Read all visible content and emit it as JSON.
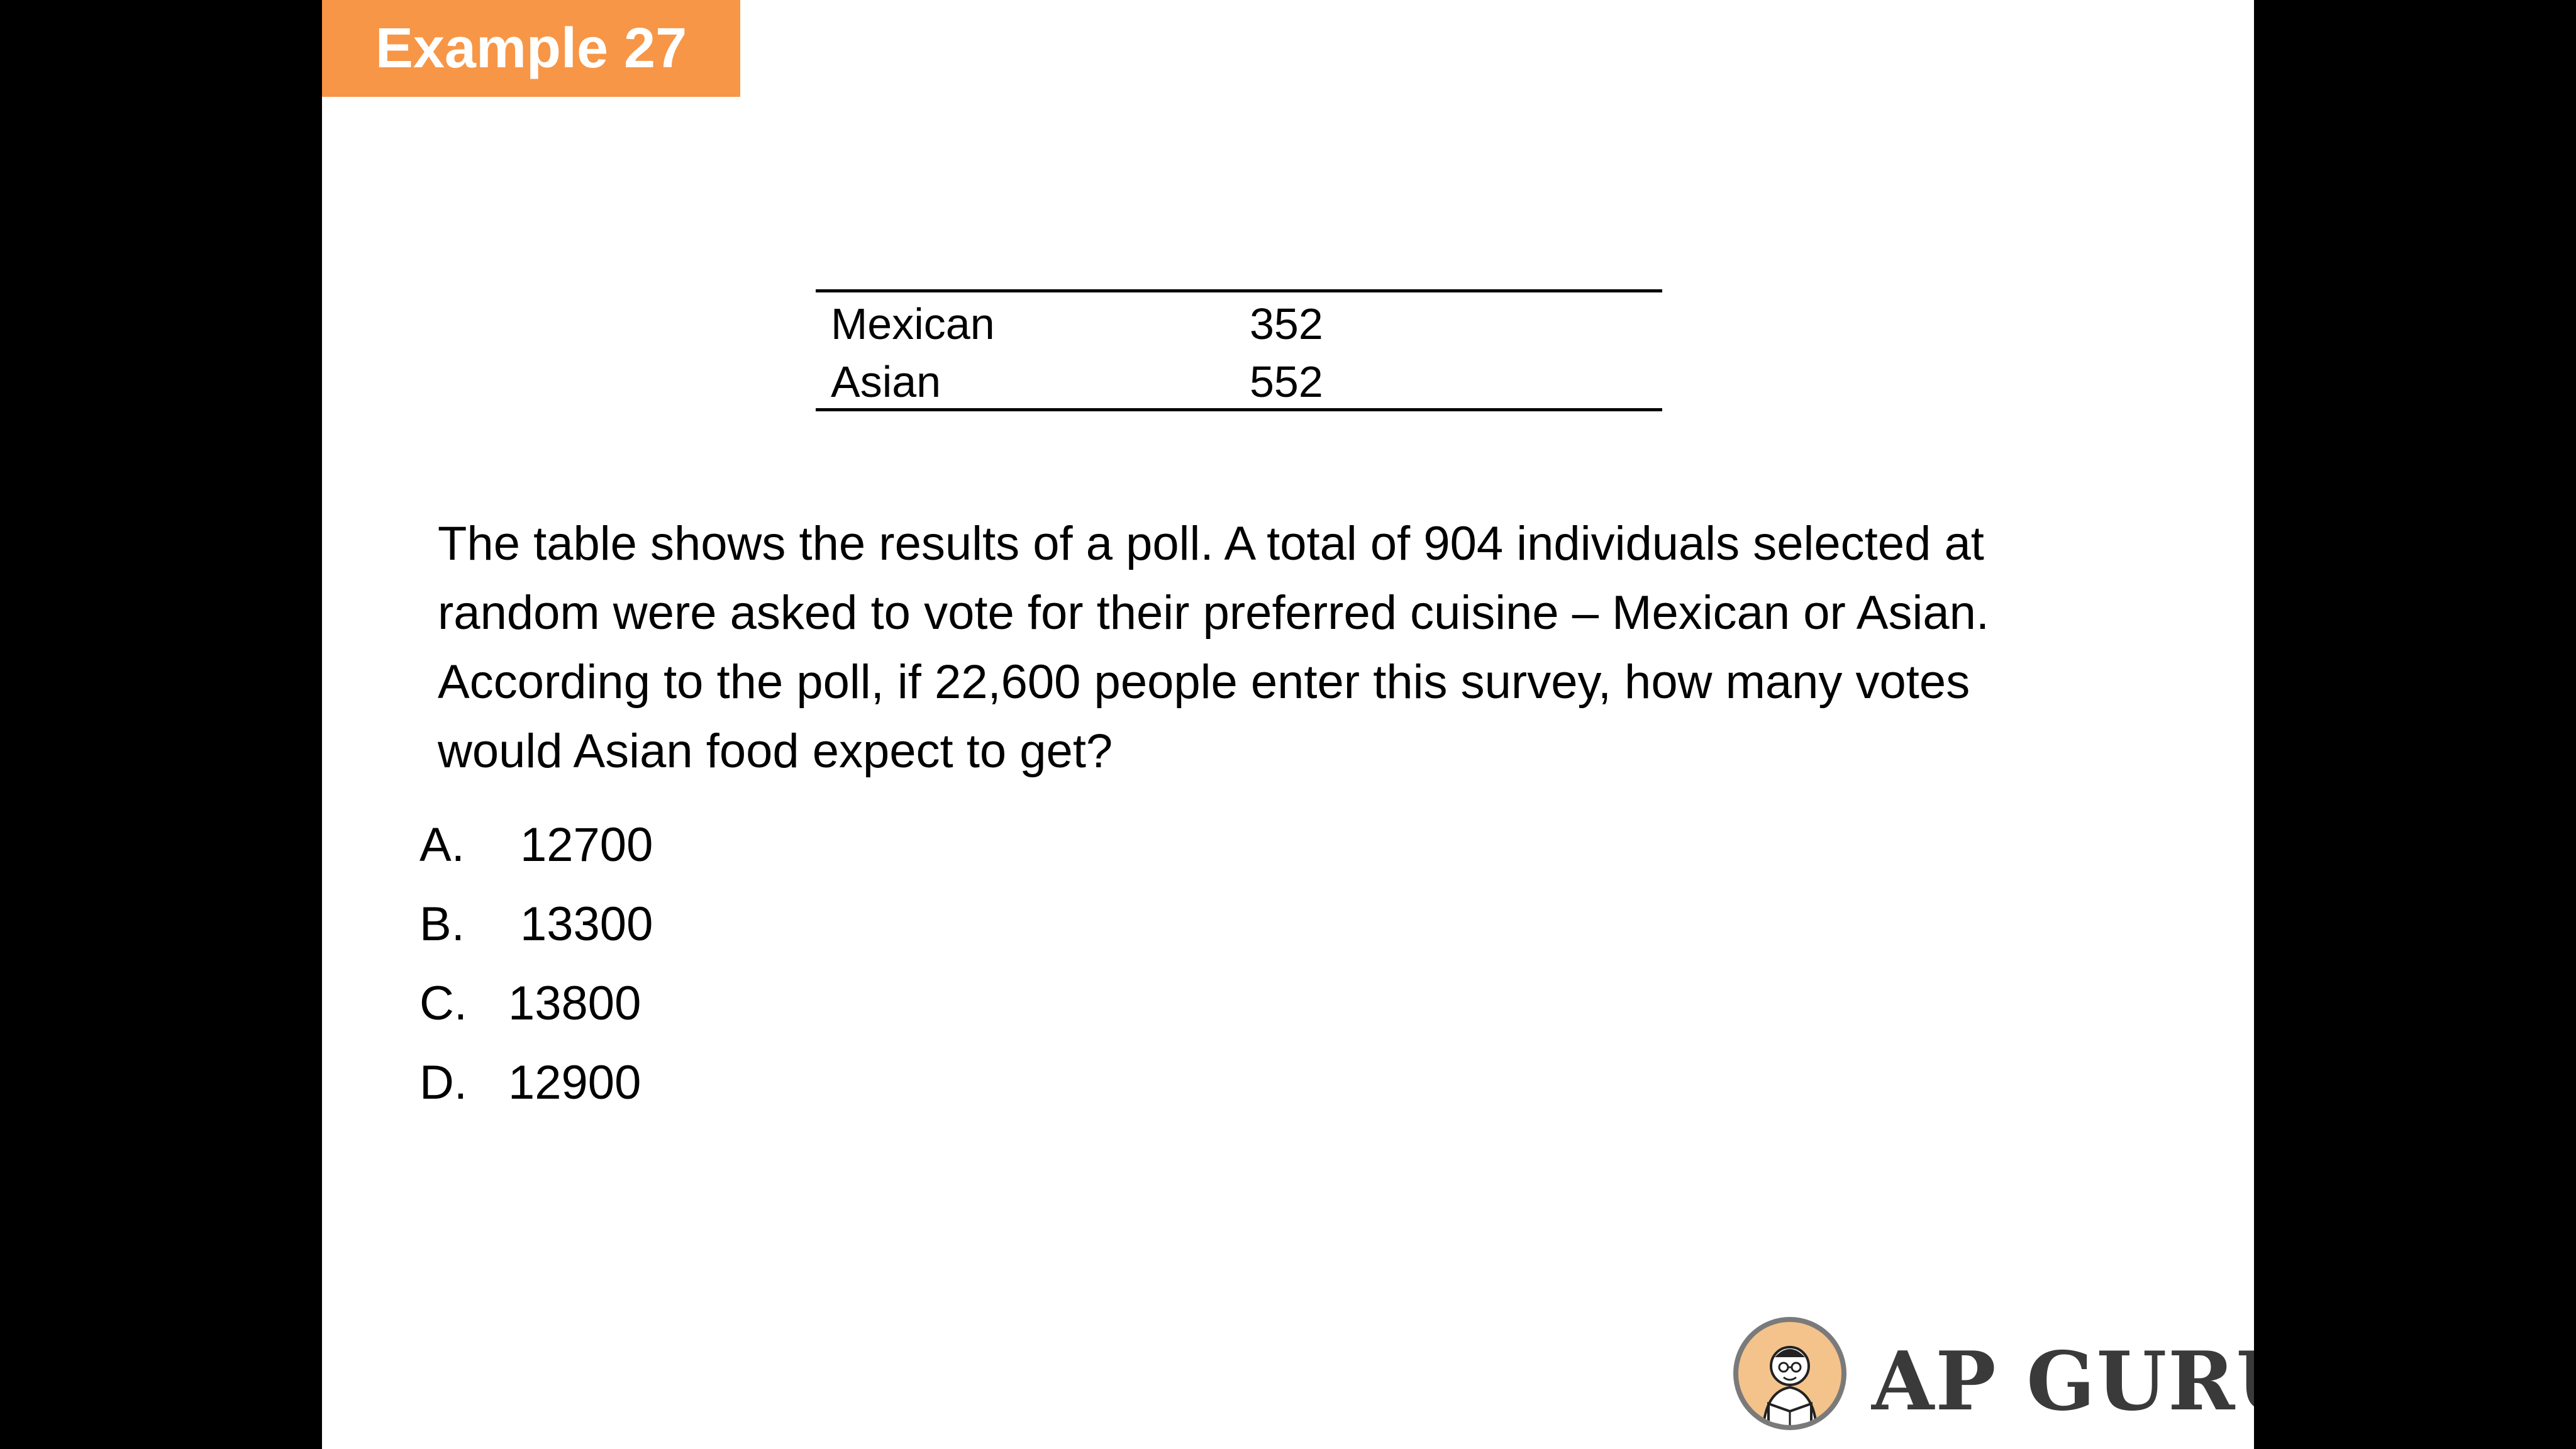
{
  "slide": {
    "badge": "Example 27",
    "table": {
      "rows": [
        {
          "cuisine": "Mexican",
          "votes": "352"
        },
        {
          "cuisine": "Asian",
          "votes": "552"
        }
      ]
    },
    "question_lines": [
      "The table shows the results of a poll. A total of 904 individuals selected at",
      "random were asked to vote for their preferred cuisine – Mexican or Asian.",
      "According to the poll, if 22,600 people enter this survey, how many votes",
      "would Asian food expect to get?"
    ],
    "options": [
      {
        "letter": "A.",
        "value": "12700"
      },
      {
        "letter": "B.",
        "value": "13300"
      },
      {
        "letter": "C.",
        "value": "13800"
      },
      {
        "letter": "D.",
        "value": "12900"
      }
    ],
    "logo": {
      "text": "AP GURU",
      "icon": "guru-reading-book-icon"
    },
    "colors": {
      "badge": "#F79646",
      "logo_text": "#3a3a3a",
      "background": "#ffffff",
      "frame": "#000000"
    }
  }
}
